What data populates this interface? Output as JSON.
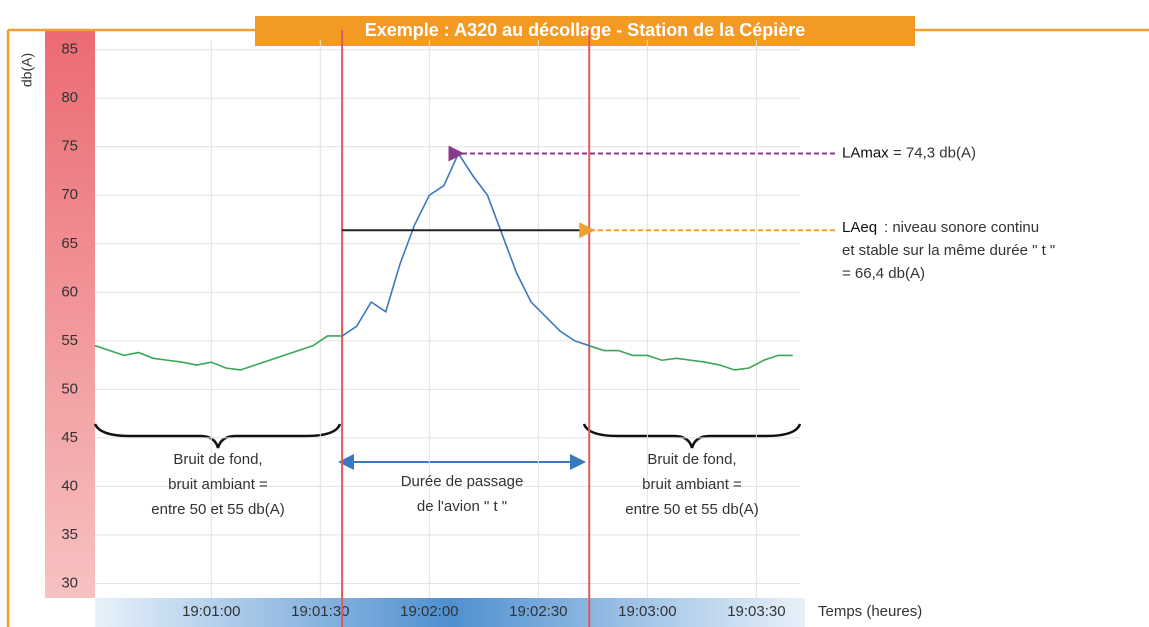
{
  "chart_data": {
    "type": "line",
    "title": "Exemple : A320 au décollage - Station de la Cépière",
    "y_label": "db(A)",
    "x_label": "Temps (heures)",
    "x": [
      "19:00:28",
      "19:00:32",
      "19:00:36",
      "19:00:40",
      "19:00:44",
      "19:00:48",
      "19:00:52",
      "19:00:56",
      "19:01:00",
      "19:01:04",
      "19:01:08",
      "19:01:12",
      "19:01:16",
      "19:01:20",
      "19:01:24",
      "19:01:28",
      "19:01:32",
      "19:01:36",
      "19:01:40",
      "19:01:44",
      "19:01:48",
      "19:01:52",
      "19:01:56",
      "19:02:00",
      "19:02:04",
      "19:02:08",
      "19:02:12",
      "19:02:16",
      "19:02:20",
      "19:02:24",
      "19:02:28",
      "19:02:32",
      "19:02:36",
      "19:02:40",
      "19:02:44",
      "19:02:48",
      "19:02:52",
      "19:02:56",
      "19:03:00",
      "19:03:04",
      "19:03:08",
      "19:03:12",
      "19:03:16",
      "19:03:20",
      "19:03:24",
      "19:03:28",
      "19:03:32",
      "19:03:36",
      "19:03:40"
    ],
    "series": [
      {
        "color": "#3aa655",
        "values": [
          54.5,
          54,
          53.5,
          53.8,
          53.2,
          53,
          52.8,
          52.5,
          52.8,
          52.2,
          52,
          52.5,
          53,
          53.5,
          54,
          54.5,
          55.5,
          55.5,
          null,
          null,
          null,
          null,
          null,
          null,
          null,
          null,
          null,
          null,
          null,
          null,
          null,
          null,
          null,
          null,
          54.5,
          54,
          54,
          53.5,
          53.5,
          53,
          53.2,
          53,
          52.8,
          52.5,
          52,
          52.2,
          53,
          53.5,
          53.5
        ]
      },
      {
        "color": "#3a78c0",
        "values": [
          null,
          null,
          null,
          null,
          null,
          null,
          null,
          null,
          null,
          null,
          null,
          null,
          null,
          null,
          null,
          null,
          null,
          55.5,
          56.5,
          59,
          58,
          63,
          67,
          70,
          71,
          74.3,
          72,
          70,
          66,
          62,
          59,
          57.5,
          56,
          55,
          54.5,
          null,
          null,
          null,
          null,
          null,
          null,
          null,
          null,
          null,
          null,
          null,
          null,
          null,
          null
        ]
      }
    ],
    "xlim": [
      "19:00:28",
      "19:03:42"
    ],
    "xticks": [
      "19:01:00",
      "19:01:30",
      "19:02:00",
      "19:02:30",
      "19:03:00",
      "19:03:30"
    ],
    "ylim": [
      28.5,
      86
    ],
    "yticks": [
      30,
      35,
      40,
      45,
      50,
      55,
      60,
      65,
      70,
      75,
      80,
      85
    ],
    "grid": true,
    "passage": [
      "19:01:36",
      "19:02:44"
    ],
    "lamax": 74.3,
    "laeq": 66.4,
    "annotations": {
      "lamax_name": "LAmax",
      "lamax_text": "= 74,3 db(A)",
      "laeq_name": "LAeq",
      "laeq_lines": [
        ": niveau sonore continu",
        "et stable sur la même durée \" t \"",
        "= 66,4 db(A)"
      ],
      "left_lines": [
        "Bruit de fond,",
        "bruit ambiant =",
        "entre 50 et 55 db(A)"
      ],
      "middle_lines": [
        "Durée de passage",
        "de l'avion \" t \""
      ],
      "right_lines": [
        "Bruit de fond,",
        "bruit ambiant =",
        "entre 50 et 55 db(A)"
      ]
    }
  }
}
